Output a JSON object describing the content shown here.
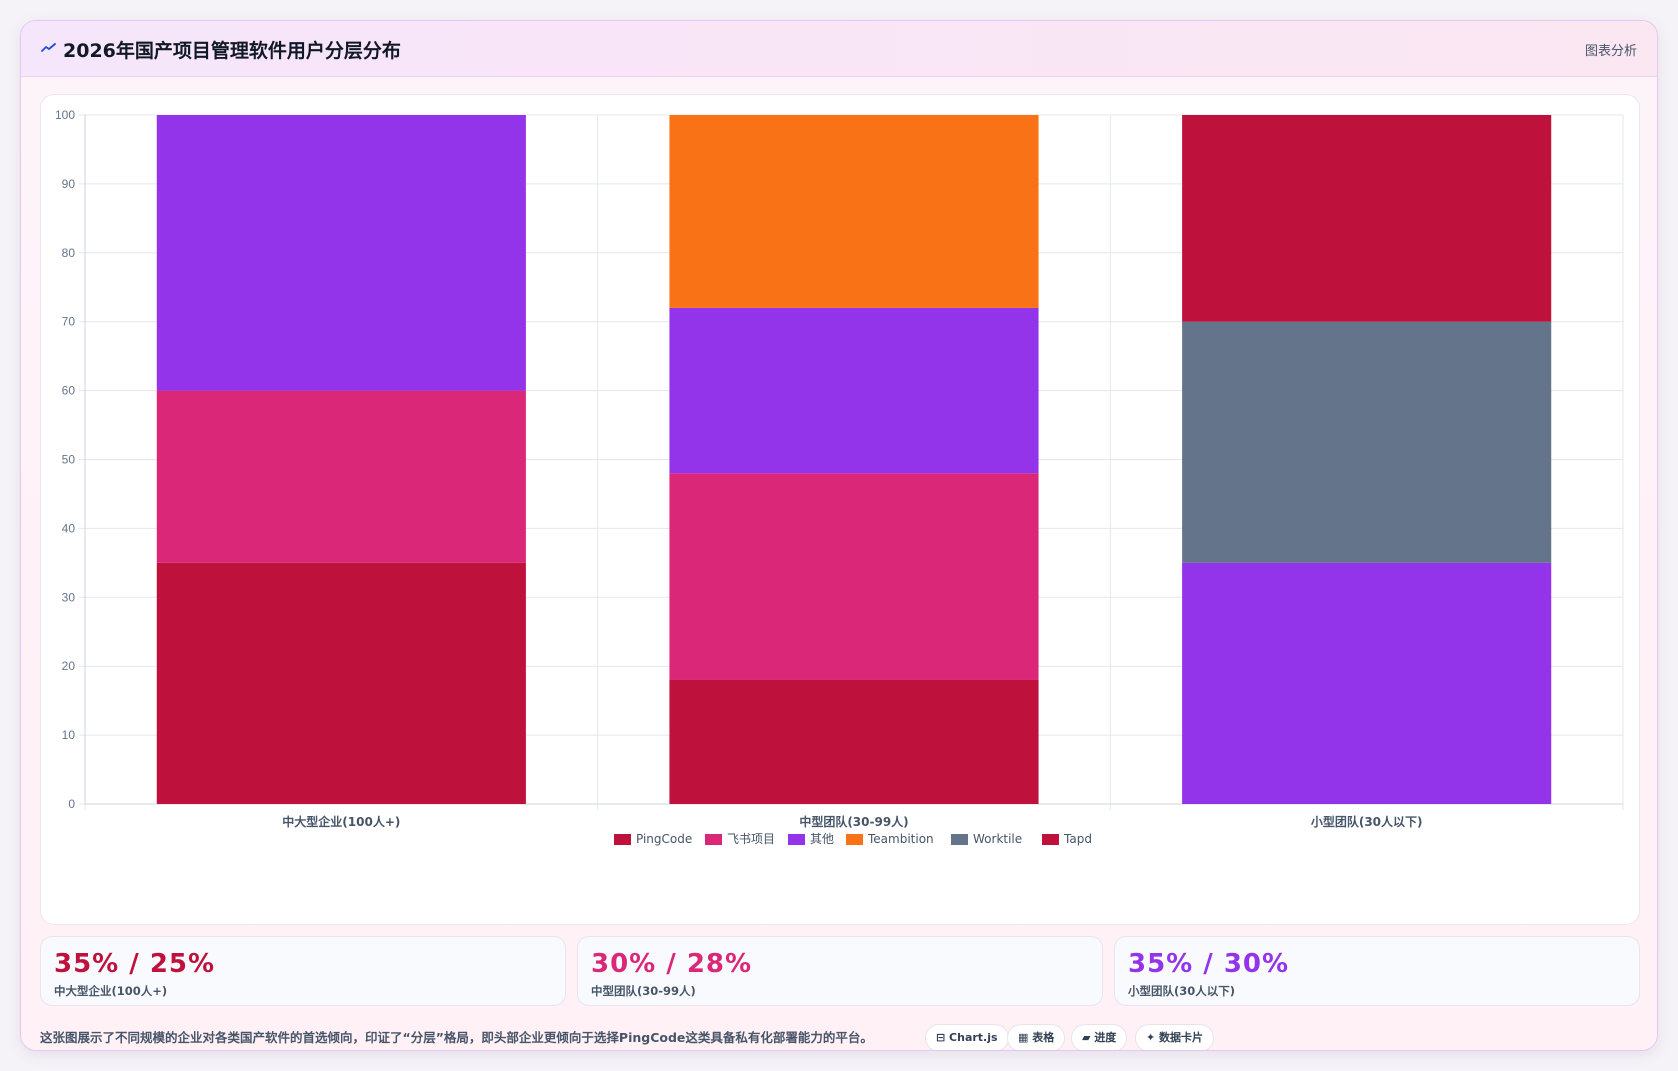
{
  "header": {
    "title": "2026年国产项目管理软件用户分层分布",
    "link_label": "图表分析",
    "icon": "chart-line-icon"
  },
  "chart_data": {
    "type": "bar",
    "stacked": true,
    "categories": [
      "中大型企业(100人+)",
      "中型团队(30-99人)",
      "小型团队(30人以下)"
    ],
    "ylim": [
      0,
      100
    ],
    "yticks": [
      0,
      10,
      20,
      30,
      40,
      50,
      60,
      70,
      80,
      90,
      100
    ],
    "grid": true,
    "legend_position": "bottom",
    "series": [
      {
        "name": "PingCode",
        "color": "#be123c",
        "values": [
          35,
          18,
          0
        ]
      },
      {
        "name": "飞书项目",
        "color": "#db2777",
        "values": [
          25,
          30,
          0
        ]
      },
      {
        "name": "其他",
        "color": "#9333ea",
        "values": [
          40,
          24,
          35
        ]
      },
      {
        "name": "Teambition",
        "color": "#f97316",
        "values": [
          0,
          28,
          0
        ]
      },
      {
        "name": "Worktile",
        "color": "#64748b",
        "values": [
          0,
          0,
          35
        ]
      },
      {
        "name": "Tapd",
        "color": "#be123c",
        "values": [
          0,
          0,
          30
        ]
      }
    ]
  },
  "stats": [
    {
      "value": "35% / 25%",
      "label": "中大型企业(100人+)",
      "color": "#be123c"
    },
    {
      "value": "30% / 28%",
      "label": "中型团队(30-99人)",
      "color": "#db2777"
    },
    {
      "value": "35% / 30%",
      "label": "小型团队(30人以下)",
      "color": "#9333ea"
    }
  ],
  "footer": {
    "description": "这张图展示了不同规模的企业对各类国产软件的首选倾向，印证了“分层”格局，即头部企业更倾向于选择PingCode这类具备私有化部署能力的平台。"
  },
  "tags": [
    {
      "label": "⊟ Chart.js"
    },
    {
      "label": "▦ 表格"
    },
    {
      "label": "▰ 进度"
    },
    {
      "label": "✦ 数据卡片"
    }
  ]
}
